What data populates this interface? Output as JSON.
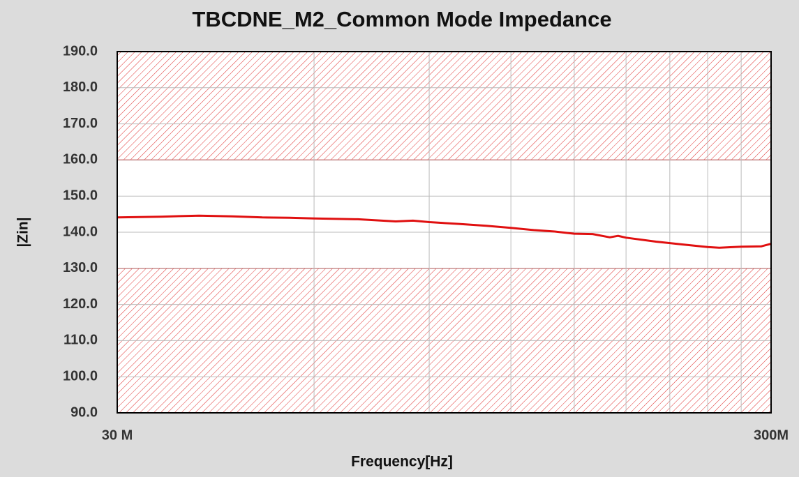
{
  "chart_data": {
    "type": "line",
    "title": "TBCDNE_M2_Common Mode Impedance",
    "x_label": "Frequency[Hz]",
    "y_label": "|Zin|",
    "x_scale": "log",
    "xlim": [
      30000000,
      300000000
    ],
    "xticks": [
      {
        "value": 30000000,
        "label": "30 M"
      },
      {
        "value": 300000000,
        "label": "300M"
      }
    ],
    "xgrid": [
      60000000,
      90000000,
      120000000,
      150000000,
      180000000,
      210000000,
      240000000,
      270000000
    ],
    "ylim": [
      90,
      190
    ],
    "yticks": [
      {
        "value": 90,
        "label": "90.0"
      },
      {
        "value": 100,
        "label": "100.0"
      },
      {
        "value": 110,
        "label": "110.0"
      },
      {
        "value": 120,
        "label": "120.0"
      },
      {
        "value": 130,
        "label": "130.0"
      },
      {
        "value": 140,
        "label": "140.0"
      },
      {
        "value": 150,
        "label": "150.0"
      },
      {
        "value": 160,
        "label": "160.0"
      },
      {
        "value": 170,
        "label": "170.0"
      },
      {
        "value": 180,
        "label": "180.0"
      },
      {
        "value": 190,
        "label": "190.0"
      }
    ],
    "grid": true,
    "limits": {
      "upper": 160,
      "lower": 130,
      "color": "#e03030"
    },
    "series": [
      {
        "color": "#e01010",
        "x": [
          30000000,
          35000000,
          40000000,
          45000000,
          50000000,
          55000000,
          60000000,
          70000000,
          80000000,
          85000000,
          90000000,
          100000000,
          110000000,
          120000000,
          130000000,
          140000000,
          150000000,
          160000000,
          170000000,
          175000000,
          180000000,
          200000000,
          220000000,
          240000000,
          250000000,
          270000000,
          290000000,
          300000000
        ],
        "values": [
          144.1,
          144.3,
          144.6,
          144.4,
          144.1,
          144.0,
          143.8,
          143.6,
          143.0,
          143.2,
          142.8,
          142.3,
          141.8,
          141.2,
          140.6,
          140.2,
          139.6,
          139.5,
          138.6,
          139.0,
          138.5,
          137.4,
          136.6,
          135.9,
          135.7,
          136.0,
          136.1,
          136.8
        ]
      }
    ]
  }
}
